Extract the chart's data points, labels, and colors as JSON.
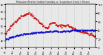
{
  "title": "Milwaukee Weather Outdoor Humidity vs. Temperature Every 5 Minutes",
  "bg_color": "#e8e8e8",
  "plot_bg_color": "#e8e8e8",
  "grid_color": "#aaaaaa",
  "temp_color": "#cc0000",
  "humidity_color": "#0000cc",
  "temp_ylim": [
    30,
    90
  ],
  "humidity_ylim": [
    0,
    100
  ],
  "n_points": 120,
  "temp_values": [
    48,
    50,
    52,
    54,
    55,
    57,
    58,
    60,
    61,
    62,
    63,
    65,
    66,
    67,
    68,
    69,
    70,
    71,
    72,
    72,
    73,
    74,
    74,
    75,
    75,
    76,
    76,
    77,
    77,
    77,
    77,
    77,
    77,
    76,
    76,
    75,
    74,
    73,
    72,
    71,
    70,
    69,
    68,
    67,
    66,
    65,
    64,
    63,
    62,
    61,
    60,
    59,
    58,
    57,
    57,
    56,
    58,
    60,
    62,
    63,
    64,
    65,
    65,
    65,
    64,
    63,
    62,
    61,
    60,
    60,
    60,
    60,
    60,
    60,
    60,
    61,
    61,
    61,
    61,
    61,
    61,
    61,
    60,
    60,
    59,
    59,
    58,
    58,
    57,
    57,
    56,
    56,
    55,
    55,
    54,
    54,
    53,
    53,
    52,
    52,
    52,
    52,
    52,
    51,
    51,
    51,
    50,
    50,
    50,
    49,
    49,
    49,
    48,
    48,
    47,
    47,
    46,
    46,
    45,
    45
  ],
  "humidity_values": [
    20,
    20,
    20,
    20,
    22,
    23,
    23,
    24,
    24,
    25,
    25,
    26,
    26,
    27,
    27,
    28,
    28,
    28,
    29,
    29,
    30,
    30,
    30,
    31,
    31,
    31,
    31,
    32,
    32,
    32,
    32,
    32,
    33,
    33,
    33,
    33,
    34,
    34,
    34,
    34,
    34,
    35,
    35,
    35,
    35,
    35,
    35,
    35,
    35,
    36,
    36,
    36,
    36,
    36,
    36,
    36,
    36,
    36,
    37,
    37,
    37,
    37,
    37,
    38,
    38,
    38,
    38,
    38,
    38,
    38,
    37,
    37,
    37,
    37,
    37,
    37,
    38,
    38,
    38,
    38,
    38,
    38,
    38,
    38,
    38,
    38,
    38,
    39,
    39,
    39,
    39,
    39,
    39,
    39,
    39,
    40,
    40,
    40,
    40,
    40,
    40,
    40,
    40,
    40,
    40,
    40,
    40,
    40,
    40,
    40,
    40,
    40,
    40,
    40,
    40,
    40,
    40,
    40,
    40,
    40
  ]
}
